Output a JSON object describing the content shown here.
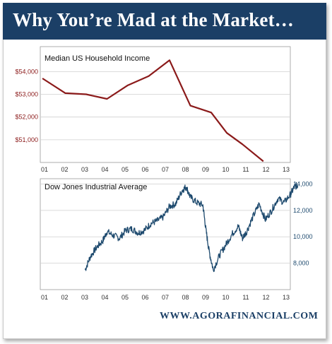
{
  "header": {
    "title": "Why You’re Mad at the Market…"
  },
  "footer": {
    "url": "WWW.AGORAFINANCIAL.COM"
  },
  "colors": {
    "banner": "#1b3f66",
    "income_line": "#8b1a1a",
    "dow_line": "#1e4a6e",
    "grid": "#cfcfcf",
    "axis_text_left": "#8b1a1a",
    "axis_text_right": "#1e4a6e"
  },
  "chart_data": [
    {
      "type": "line",
      "title": "Median US Household Income",
      "xlabel": "",
      "ylabel": "",
      "x_tick_labels": [
        "01",
        "02",
        "03",
        "04",
        "05",
        "06",
        "07",
        "08",
        "09",
        "10",
        "11",
        "12",
        "13"
      ],
      "y_tick_labels": [
        "$51,000",
        "$52,000",
        "$53,000",
        "$54,000"
      ],
      "y_ticks": [
        51000,
        52000,
        53000,
        54000
      ],
      "ylim": [
        50000,
        55100
      ],
      "xlim": [
        2001,
        2013
      ],
      "grid": true,
      "y_axis_side": "left",
      "series": [
        {
          "x": [
            2000.9,
            2002.0,
            2003.0,
            2004.0,
            2005.0,
            2006.0,
            2007.0,
            2008.0,
            2009.0,
            2009.75,
            2010.5,
            2011.5
          ],
          "y": [
            53700,
            53050,
            53000,
            52800,
            53400,
            53800,
            54500,
            52500,
            52200,
            51300,
            50800,
            50050
          ]
        }
      ]
    },
    {
      "type": "line",
      "title": "Dow Jones Industrial Average",
      "xlabel": "",
      "ylabel": "",
      "x_tick_labels": [
        "01",
        "02",
        "03",
        "04",
        "05",
        "06",
        "07",
        "08",
        "09",
        "10",
        "11",
        "12",
        "13"
      ],
      "y_tick_labels": [
        "8,000",
        "10,000",
        "12,000",
        "14,000"
      ],
      "y_ticks": [
        8000,
        10000,
        12000,
        14000
      ],
      "ylim": [
        6000,
        14400
      ],
      "xlim": [
        2001,
        2013
      ],
      "grid": true,
      "y_axis_side": "right",
      "series": [
        {
          "x": [
            2002.95,
            2003.2,
            2003.5,
            2003.8,
            2004.0,
            2004.3,
            2004.6,
            2004.9,
            2005.2,
            2005.5,
            2005.8,
            2006.1,
            2006.4,
            2006.7,
            2007.0,
            2007.3,
            2007.6,
            2007.8,
            2008.0,
            2008.3,
            2008.6,
            2008.75,
            2008.9,
            2009.1,
            2009.4,
            2009.7,
            2010.0,
            2010.3,
            2010.5,
            2010.7,
            2011.0,
            2011.3,
            2011.6,
            2011.9,
            2012.2,
            2012.5,
            2012.8,
            2013.0,
            2013.15
          ],
          "y": [
            7500,
            8500,
            9200,
            9700,
            10400,
            10100,
            9900,
            10500,
            10600,
            10300,
            10500,
            11000,
            11200,
            11500,
            12300,
            12500,
            13500,
            13800,
            13000,
            12600,
            12400,
            10500,
            8900,
            7500,
            8600,
            9400,
            10200,
            10800,
            9900,
            10400,
            11500,
            12500,
            11300,
            12000,
            12900,
            12600,
            13200,
            13800,
            13900
          ]
        }
      ]
    }
  ]
}
